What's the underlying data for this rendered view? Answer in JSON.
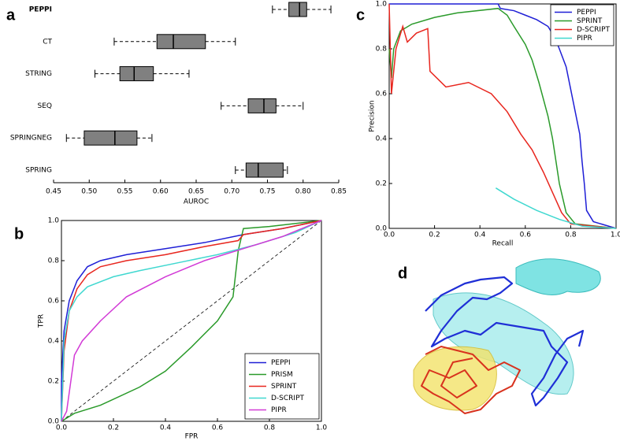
{
  "chart_data": [
    {
      "type": "box",
      "panel": "a",
      "orientation": "horizontal",
      "xlabel": "AUROC",
      "categories": [
        "PEPPI",
        "CT",
        "STRING",
        "SEQ",
        "SPRINGNEG",
        "SPRING"
      ],
      "whislo": [
        0.757,
        0.535,
        0.508,
        0.685,
        0.468,
        0.705
      ],
      "q1": [
        0.78,
        0.595,
        0.543,
        0.723,
        0.493,
        0.72
      ],
      "median": [
        0.795,
        0.618,
        0.563,
        0.745,
        0.536,
        0.737
      ],
      "q3": [
        0.805,
        0.663,
        0.59,
        0.762,
        0.567,
        0.772
      ],
      "whishi": [
        0.839,
        0.705,
        0.64,
        0.8,
        0.588,
        0.778
      ],
      "color": "#808080",
      "xlim": [
        0.45,
        0.85
      ],
      "xticks": [
        0.45,
        {
          "value": 0.5,
          "label": "0.50"
        },
        0.55,
        {
          "value": 0.6,
          "label": "0.60"
        },
        0.65,
        {
          "value": 0.7,
          "label": "0.70"
        },
        0.75,
        {
          "value": 0.8,
          "label": "0.80"
        },
        0.85
      ]
    },
    {
      "type": "line",
      "panel": "b",
      "xlabel": "FPR",
      "ylabel": "TPR",
      "legend": "lower right",
      "diagonal": true,
      "xlim": [
        0,
        1
      ],
      "ylim": [
        0,
        1
      ],
      "xticks": [
        {
          "value": 0,
          "label": "0.0"
        },
        0.2,
        0.4,
        0.6,
        0.8,
        {
          "value": 1,
          "label": "1.0"
        }
      ],
      "yticks": [
        {
          "value": 0,
          "label": "0.0"
        },
        0.2,
        0.4,
        0.6,
        0.8,
        {
          "value": 1,
          "label": "1.0"
        }
      ],
      "series": [
        {
          "name": "PEPPI",
          "color": "#1f1fd6",
          "x": [
            0,
            0,
            0.01,
            0.03,
            0.06,
            0.1,
            0.15,
            0.25,
            0.4,
            0.55,
            0.7,
            0.85,
            1
          ],
          "values": [
            0,
            0.2,
            0.45,
            0.6,
            0.7,
            0.77,
            0.8,
            0.83,
            0.86,
            0.89,
            0.93,
            0.96,
            1
          ]
        },
        {
          "name": "PRISM",
          "color": "#2a9a2a",
          "x": [
            0,
            0.05,
            0.15,
            0.3,
            0.4,
            0.5,
            0.6,
            0.66,
            0.68,
            0.7,
            0.8,
            1
          ],
          "values": [
            0,
            0.04,
            0.08,
            0.17,
            0.25,
            0.37,
            0.5,
            0.62,
            0.85,
            0.96,
            0.97,
            1
          ]
        },
        {
          "name": "SPRINT",
          "color": "#e8261e",
          "x": [
            0,
            0.01,
            0.03,
            0.06,
            0.1,
            0.15,
            0.25,
            0.4,
            0.55,
            0.68,
            0.7,
            0.85,
            1
          ],
          "values": [
            0,
            0.35,
            0.55,
            0.66,
            0.73,
            0.77,
            0.8,
            0.83,
            0.87,
            0.9,
            0.93,
            0.96,
            1
          ]
        },
        {
          "name": "D-SCRIPT",
          "color": "#40d8d0",
          "x": [
            0,
            0.01,
            0.03,
            0.06,
            0.1,
            0.2,
            0.3,
            0.45,
            0.6,
            0.75,
            0.9,
            1
          ],
          "values": [
            0,
            0.4,
            0.55,
            0.62,
            0.67,
            0.72,
            0.75,
            0.79,
            0.83,
            0.88,
            0.94,
            1
          ]
        },
        {
          "name": "PIPR",
          "color": "#d23ad6",
          "x": [
            0,
            0.02,
            0.05,
            0.08,
            0.15,
            0.25,
            0.4,
            0.55,
            0.7,
            0.85,
            1
          ],
          "values": [
            0,
            0.05,
            0.33,
            0.4,
            0.5,
            0.62,
            0.72,
            0.8,
            0.86,
            0.92,
            1
          ]
        }
      ]
    },
    {
      "type": "line",
      "panel": "c",
      "xlabel": "Recall",
      "ylabel": "Precision",
      "legend": "upper right",
      "xlim": [
        0,
        1
      ],
      "ylim": [
        0,
        1
      ],
      "xticks": [
        {
          "value": 0,
          "label": "0.0"
        },
        0.2,
        0.4,
        0.6,
        0.8,
        {
          "value": 1,
          "label": "1.0"
        }
      ],
      "yticks": [
        {
          "value": 0,
          "label": "0.0"
        },
        0.2,
        0.4,
        0.6,
        0.8,
        {
          "value": 1,
          "label": "1.0"
        }
      ],
      "series": [
        {
          "name": "PEPPI",
          "color": "#1f1fd6",
          "x": [
            0,
            0.48,
            0.49,
            0.55,
            0.6,
            0.65,
            0.7,
            0.73,
            0.75,
            0.78,
            0.8,
            0.82,
            0.84,
            0.85,
            0.86,
            0.87,
            0.9,
            1
          ],
          "values": [
            1,
            1,
            0.98,
            0.97,
            0.95,
            0.93,
            0.9,
            0.85,
            0.8,
            0.72,
            0.62,
            0.52,
            0.42,
            0.3,
            0.2,
            0.08,
            0.03,
            0
          ]
        },
        {
          "name": "SPRINT",
          "color": "#2a9a2a",
          "x": [
            0,
            0.01,
            0.02,
            0.05,
            0.1,
            0.2,
            0.3,
            0.48,
            0.52,
            0.55,
            0.6,
            0.63,
            0.66,
            0.7,
            0.72,
            0.75,
            0.78,
            0.82,
            1
          ],
          "values": [
            0.8,
            0.67,
            0.8,
            0.88,
            0.91,
            0.94,
            0.96,
            0.98,
            0.95,
            0.9,
            0.82,
            0.75,
            0.65,
            0.5,
            0.4,
            0.2,
            0.07,
            0.02,
            0
          ]
        },
        {
          "name": "D-SCRIPT",
          "color": "#e8261e",
          "x": [
            0,
            0.01,
            0.03,
            0.06,
            0.08,
            0.12,
            0.17,
            0.18,
            0.25,
            0.35,
            0.45,
            0.52,
            0.58,
            0.63,
            0.68,
            0.72,
            0.76,
            0.8,
            1
          ],
          "values": [
            1,
            0.6,
            0.8,
            0.9,
            0.83,
            0.87,
            0.89,
            0.7,
            0.63,
            0.65,
            0.6,
            0.52,
            0.42,
            0.35,
            0.25,
            0.16,
            0.07,
            0.02,
            0
          ]
        },
        {
          "name": "PIPR",
          "color": "#40d8d0",
          "x": [
            0.47,
            0.55,
            0.65,
            0.75,
            0.85,
            1
          ],
          "values": [
            0.18,
            0.13,
            0.08,
            0.04,
            0.01,
            0
          ]
        }
      ]
    }
  ],
  "panel_d": {
    "label": "d"
  }
}
